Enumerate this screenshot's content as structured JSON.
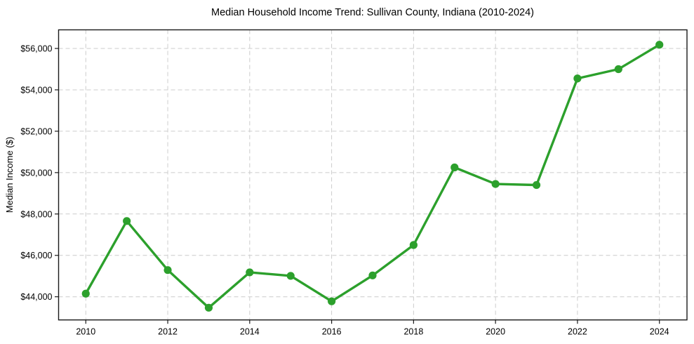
{
  "window": {
    "title": "Median Household Income Trend: Sullivan County, Indiana (2010-2024)"
  },
  "chart_data": {
    "type": "line",
    "title": "Median Household Income Trend: Sullivan County, Indiana (2010-2024)",
    "xlabel": "",
    "ylabel": "Median Income ($)",
    "series": [
      {
        "name": "Median household income",
        "x": [
          2010,
          2011,
          2012,
          2013,
          2014,
          2015,
          2016,
          2017,
          2018,
          2019,
          2020,
          2021,
          2022,
          2023,
          2024
        ],
        "values": [
          44150,
          47660,
          45290,
          43470,
          45180,
          45010,
          43780,
          45030,
          46500,
          50250,
          49450,
          49400,
          54550,
          55000,
          56180
        ]
      }
    ],
    "xlim": [
      2009.336,
      2024.673
    ],
    "ylim": [
      42880,
      56900
    ],
    "x_ticks": [
      2010,
      2012,
      2014,
      2016,
      2018,
      2020,
      2022,
      2024
    ],
    "x_tick_labels": [
      "2010",
      "2012",
      "2014",
      "2016",
      "2018",
      "2020",
      "2022",
      "2024"
    ],
    "y_ticks": [
      44000,
      46000,
      48000,
      50000,
      52000,
      54000,
      56000
    ],
    "y_tick_labels": [
      "$44,000",
      "$46,000",
      "$48,000",
      "$50,000",
      "$52,000",
      "$54,000",
      "$56,000"
    ],
    "grid": true,
    "grid_style": "dashed",
    "legend": "none",
    "marker": "circle"
  },
  "colors": {
    "line": "#2ca02c",
    "marker": "#2ca02c",
    "grid": "#cccccc",
    "spine": "#1a1a1a",
    "tick": "#1a1a1a",
    "text": "#000000",
    "background": "#ffffff"
  }
}
